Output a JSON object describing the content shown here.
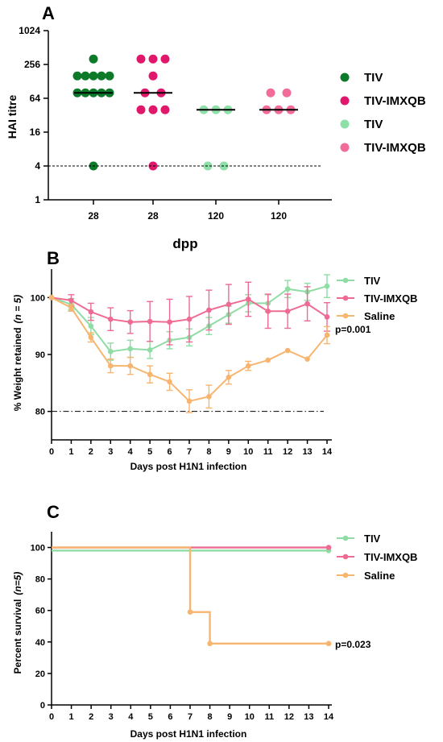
{
  "colors": {
    "tiv_dark": "#0d7a2a",
    "tiv_imxqb_dark": "#e0176b",
    "tiv_light": "#8fe0a8",
    "tiv_imxqb_light": "#f26c9a",
    "tiv_line": "#8fdca5",
    "tiv_imxqb_line": "#ee6b93",
    "saline_line": "#f8b56f"
  },
  "chart_data": [
    {
      "panel": "A",
      "type": "scatter",
      "ylabel": "HAI titre",
      "xlabel": "dpp",
      "yscale": "log2",
      "ylim": [
        1,
        1024
      ],
      "yticks": [
        "1",
        "4",
        "16",
        "64",
        "256",
        "1024"
      ],
      "categories": [
        "28",
        "28",
        "120",
        "120"
      ],
      "threshold": 4,
      "legend": [
        "TIV",
        "TIV-IMXQB",
        "TIV",
        "TIV-IMXQB"
      ],
      "groups": [
        {
          "name": "TIV",
          "color": "#0d7a2a",
          "median": 80,
          "points": [
            [
              0,
              320
            ],
            [
              -2,
              160
            ],
            [
              -1,
              160
            ],
            [
              0,
              160
            ],
            [
              1,
              160
            ],
            [
              2,
              160
            ],
            [
              -2,
              80
            ],
            [
              -1,
              80
            ],
            [
              0,
              80
            ],
            [
              1,
              80
            ],
            [
              2,
              80
            ],
            [
              0,
              4
            ]
          ]
        },
        {
          "name": "TIV-IMXQB",
          "color": "#e0176b",
          "median": 80,
          "points": [
            [
              -1.5,
              320
            ],
            [
              0,
              320
            ],
            [
              1.5,
              320
            ],
            [
              0,
              160
            ],
            [
              -1,
              80
            ],
            [
              1,
              80
            ],
            [
              -1.5,
              40
            ],
            [
              0,
              40
            ],
            [
              1.5,
              40
            ],
            [
              0,
              4
            ]
          ]
        },
        {
          "name": "TIV",
          "color": "#8fe0a8",
          "median": 40,
          "points": [
            [
              -1.5,
              40
            ],
            [
              0,
              40
            ],
            [
              1.5,
              40
            ],
            [
              -1,
              4
            ],
            [
              1,
              4
            ]
          ]
        },
        {
          "name": "TIV-IMXQB",
          "color": "#f26c9a",
          "median": 40,
          "points": [
            [
              -1,
              80
            ],
            [
              1,
              80
            ],
            [
              -1.5,
              40
            ],
            [
              0,
              40
            ],
            [
              1.5,
              40
            ]
          ]
        }
      ]
    },
    {
      "panel": "B",
      "type": "line",
      "ylabel": "% Weight retained",
      "ylabel_n": "(n = 5)",
      "xlabel": "Days post H1N1 infection",
      "xlim": [
        0,
        14
      ],
      "ylim": [
        75,
        105
      ],
      "yticks": [
        "80",
        "90",
        "100"
      ],
      "xticks": [
        "0",
        "1",
        "2",
        "3",
        "4",
        "5",
        "6",
        "7",
        "8",
        "9",
        "10",
        "11",
        "12",
        "13",
        "14"
      ],
      "threshold": 80,
      "annotation": "p=0.001",
      "x": [
        0,
        1,
        2,
        3,
        4,
        5,
        6,
        7,
        8,
        9,
        10,
        11,
        12,
        13,
        14
      ],
      "series": [
        {
          "name": "TIV",
          "color": "#8fdca5",
          "values": [
            100,
            98.8,
            95,
            90.5,
            91,
            90.8,
            92.5,
            93,
            95,
            97,
            99,
            99,
            101.5,
            101,
            102
          ],
          "errors": [
            0,
            1,
            1.5,
            1.5,
            1.5,
            1.5,
            1.5,
            1.5,
            1.5,
            1.5,
            1.5,
            1.5,
            1.5,
            1.5,
            2
          ]
        },
        {
          "name": "TIV-IMXQB",
          "color": "#ee6b93",
          "values": [
            100,
            99.5,
            97.5,
            96.2,
            95.7,
            95.8,
            95.7,
            96.2,
            97.8,
            98.8,
            99.7,
            97.6,
            97.6,
            98.9,
            96.6
          ],
          "errors": [
            0,
            1,
            1.5,
            2,
            2,
            3.5,
            4,
            4,
            3.5,
            3.5,
            3,
            3,
            3,
            3,
            2.5
          ]
        },
        {
          "name": "Saline",
          "color": "#f8b56f",
          "values": [
            100,
            98.2,
            93,
            88,
            88,
            86.5,
            85.2,
            81.8,
            82.6,
            86,
            88,
            89,
            90.7,
            89.2,
            93.4
          ],
          "errors": [
            0,
            0.6,
            0.8,
            1.2,
            1.5,
            1.5,
            1.5,
            2,
            2,
            1.2,
            0.8,
            0,
            0,
            0,
            1.5
          ]
        }
      ]
    },
    {
      "panel": "C",
      "type": "line",
      "ylabel": "Percent survival",
      "ylabel_n": "(n=5)",
      "xlabel": "Days post H1N1 infection",
      "xlim": [
        0,
        14
      ],
      "ylim": [
        0,
        110
      ],
      "yticks": [
        "0",
        "20",
        "40",
        "60",
        "80",
        "100"
      ],
      "xticks": [
        "0",
        "1",
        "2",
        "3",
        "4",
        "5",
        "6",
        "7",
        "8",
        "9",
        "10",
        "11",
        "12",
        "13",
        "14"
      ],
      "annotation": "p=0.023",
      "series": [
        {
          "name": "TIV",
          "color": "#8fdca5",
          "steps": [
            [
              0,
              98
            ],
            [
              14,
              98
            ]
          ]
        },
        {
          "name": "TIV-IMXQB",
          "color": "#ee6b93",
          "steps": [
            [
              0,
              100
            ],
            [
              14,
              100
            ]
          ]
        },
        {
          "name": "Saline",
          "color": "#f8b56f",
          "steps": [
            [
              0,
              100
            ],
            [
              7,
              100
            ],
            [
              7,
              59
            ],
            [
              8,
              59
            ],
            [
              8,
              39
            ],
            [
              14,
              39
            ]
          ],
          "markers": [
            [
              7,
              59
            ],
            [
              8,
              39
            ],
            [
              14,
              39
            ]
          ]
        }
      ]
    }
  ]
}
